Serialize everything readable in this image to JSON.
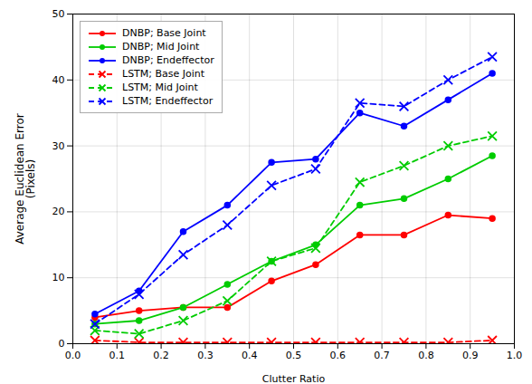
{
  "chart_data": {
    "type": "line",
    "xlabel": "Clutter Ratio",
    "ylabel": "Average Euclidean Error\n(Pixels)",
    "x": [
      0.05,
      0.15,
      0.25,
      0.35,
      0.45,
      0.55,
      0.65,
      0.75,
      0.85,
      0.95
    ],
    "xlim": [
      0.0,
      1.0
    ],
    "ylim": [
      0,
      50
    ],
    "xticks": [
      {
        "value": 0.0,
        "label": "0.0"
      },
      0.1,
      0.2,
      0.3,
      0.4,
      0.5,
      0.6,
      0.7,
      0.8,
      0.9,
      {
        "value": 1.0,
        "label": "1.0"
      }
    ],
    "yticks": [
      0,
      10,
      20,
      30,
      40,
      50
    ],
    "grid": true,
    "legend": "upper left",
    "series": [
      {
        "name": "DNBP; Base Joint",
        "color": "#FF0000",
        "marker": "circle",
        "line_style": "solid",
        "values": [
          4.0,
          5.0,
          5.5,
          5.5,
          9.5,
          12.0,
          16.5,
          16.5,
          19.5,
          19.0
        ]
      },
      {
        "name": "DNBP; Mid Joint",
        "color": "#00CC00",
        "marker": "circle",
        "line_style": "solid",
        "values": [
          3.0,
          3.5,
          5.5,
          9.0,
          12.5,
          15.0,
          21.0,
          22.0,
          25.0,
          28.5
        ]
      },
      {
        "name": "DNBP; Endeffector",
        "color": "#0000FF",
        "marker": "circle",
        "line_style": "solid",
        "values": [
          4.5,
          8.0,
          17.0,
          21.0,
          27.5,
          28.0,
          35.0,
          33.0,
          37.0,
          41.0
        ]
      },
      {
        "name": "LSTM; Base Joint",
        "color": "#FF0000",
        "marker": "x",
        "line_style": "dashed",
        "values": [
          0.5,
          0.2,
          0.2,
          0.2,
          0.2,
          0.2,
          0.2,
          0.2,
          0.2,
          0.5
        ]
      },
      {
        "name": "LSTM; Mid Joint",
        "color": "#00CC00",
        "marker": "x",
        "line_style": "dashed",
        "values": [
          2.0,
          1.5,
          3.5,
          6.5,
          12.5,
          14.5,
          24.5,
          27.0,
          30.0,
          31.5
        ]
      },
      {
        "name": "LSTM; Endeffector",
        "color": "#0000FF",
        "marker": "x",
        "line_style": "dashed",
        "values": [
          3.0,
          7.5,
          13.5,
          18.0,
          24.0,
          26.5,
          36.5,
          36.0,
          40.0,
          43.5
        ]
      }
    ]
  }
}
